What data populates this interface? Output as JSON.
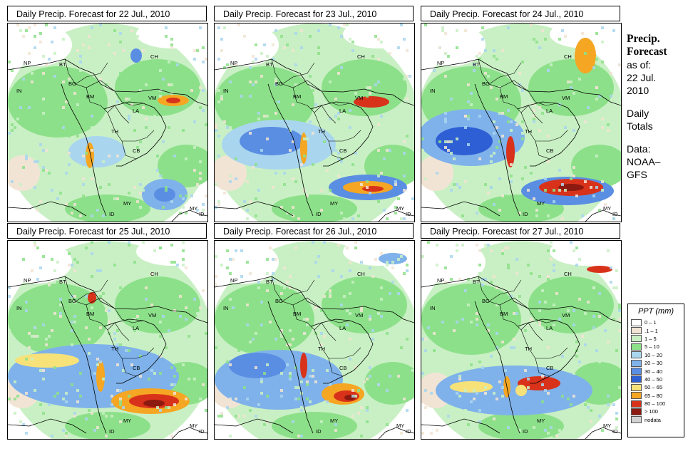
{
  "panels": [
    {
      "title": "Daily Precip. Forecast for  22 Jul., 2010",
      "labels": [
        "NP",
        "BT",
        "BG",
        "IN",
        "BM",
        "VM",
        "CH",
        "LA",
        "TH",
        "CB",
        "MY",
        "ID",
        "MY",
        "ID"
      ]
    },
    {
      "title": "Daily Precip. Forecast for  23 Jul., 2010",
      "labels": [
        "NP",
        "BT",
        "BG",
        "IN",
        "BM",
        "VM",
        "CH",
        "LA",
        "TH",
        "CB",
        "MY",
        "ID",
        "MY",
        "ID"
      ]
    },
    {
      "title": "Daily Precip. Forecast for  24 Jul., 2010",
      "labels": [
        "NP",
        "BT",
        "BG",
        "IN",
        "BM",
        "VM",
        "CH",
        "LA",
        "TH",
        "CB",
        "MY",
        "ID",
        "MY",
        "ID"
      ]
    },
    {
      "title": "Daily Precip. Forecast for  25 Jul., 2010",
      "labels": [
        "NP",
        "BT",
        "BG",
        "IN",
        "BM",
        "VM",
        "CH",
        "LA",
        "TH",
        "CB",
        "MY",
        "ID",
        "MY",
        "ID"
      ]
    },
    {
      "title": "Daily Precip. Forecast for  26 Jul., 2010",
      "labels": [
        "NP",
        "BT",
        "BG",
        "IN",
        "BM",
        "VM",
        "CH",
        "LA",
        "TH",
        "CB",
        "MY",
        "ID",
        "MY",
        "ID"
      ]
    },
    {
      "title": "Daily Precip. Forecast for  27 Jul., 2010",
      "labels": [
        "NP",
        "BT",
        "BG",
        "IN",
        "BM",
        "VM",
        "CH",
        "LA",
        "TH",
        "CB",
        "MY",
        "ID",
        "MY",
        "ID"
      ]
    }
  ],
  "side": {
    "heading_line1": "Precip.",
    "heading_line2": "Forecast",
    "asof": "as of:",
    "date_line1": "22 Jul.",
    "date_line2": "2010",
    "totals_line1": "Daily",
    "totals_line2": "Totals",
    "data_line1": "Data:",
    "data_line2": "NOAA–",
    "data_line3": "GFS"
  },
  "legend": {
    "title": "PPT (mm)",
    "items": [
      {
        "label": "0 – 1",
        "color": "#ffffff"
      },
      {
        "label": ".1 – 1",
        "color": "#f2e4d4"
      },
      {
        "label": "1 – 5",
        "color": "#c9f0c4"
      },
      {
        "label": "5 – 10",
        "color": "#8de08a"
      },
      {
        "label": "10 – 20",
        "color": "#a9d6ee"
      },
      {
        "label": "20 – 30",
        "color": "#7fb2ea"
      },
      {
        "label": "30 – 40",
        "color": "#5a8ee3"
      },
      {
        "label": "40 – 50",
        "color": "#2e5fd4"
      },
      {
        "label": "50 – 65",
        "color": "#f7e27a"
      },
      {
        "label": "65 – 80",
        "color": "#f5a623"
      },
      {
        "label": "80 – 100",
        "color": "#d8321b"
      },
      {
        "label": "> 100",
        "color": "#8c1a10"
      },
      {
        "label": "nodata",
        "color": "#d3d3d3"
      }
    ]
  }
}
